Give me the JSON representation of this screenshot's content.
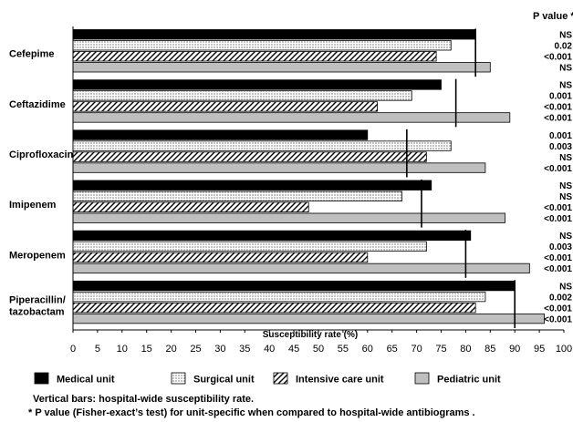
{
  "chart_data": {
    "type": "bar",
    "orientation": "horizontal",
    "xlabel": "Susceptibility rate (%)",
    "xlim": [
      0,
      100
    ],
    "xticks": [
      0,
      5,
      10,
      15,
      20,
      25,
      30,
      35,
      40,
      45,
      50,
      55,
      60,
      65,
      70,
      75,
      80,
      85,
      90,
      95,
      100
    ],
    "pvalue_header": "P value *",
    "categories": [
      {
        "label": [
          "Cefepime"
        ],
        "values": [
          82,
          77,
          74,
          85
        ],
        "hospital": 82,
        "pvalues": [
          "NS",
          "0.02",
          "<0.001",
          "NS"
        ]
      },
      {
        "label": [
          "Ceftazidime"
        ],
        "values": [
          75,
          69,
          62,
          89
        ],
        "hospital": 78,
        "pvalues": [
          "NS",
          "0.001",
          "<0.001",
          "<0.001"
        ]
      },
      {
        "label": [
          "Ciprofloxacin"
        ],
        "values": [
          60,
          77,
          72,
          84
        ],
        "hospital": 68,
        "pvalues": [
          "0.001",
          "0.003",
          "NS",
          "<0.001"
        ]
      },
      {
        "label": [
          "Imipenem"
        ],
        "values": [
          73,
          67,
          48,
          88
        ],
        "hospital": 71,
        "pvalues": [
          "NS",
          "NS",
          "<0.001",
          "<0.001"
        ]
      },
      {
        "label": [
          "Meropenem"
        ],
        "values": [
          81,
          72,
          60,
          93
        ],
        "hospital": 80,
        "pvalues": [
          "NS",
          "0.003",
          "<0.001",
          "<0.001"
        ]
      },
      {
        "label": [
          "Piperacillin/",
          "tazobactam"
        ],
        "values": [
          90,
          84,
          82,
          96
        ],
        "hospital": 90,
        "pvalues": [
          "NS",
          "0.002",
          "<0.001",
          "<0.001"
        ]
      }
    ],
    "series": [
      {
        "name": "Medical unit",
        "pattern": "solid",
        "color": "#000000"
      },
      {
        "name": "Surgical unit",
        "pattern": "dots",
        "color": "#ffffff"
      },
      {
        "name": "Intensive care  unit",
        "pattern": "hatch",
        "color": "#ffffff"
      },
      {
        "name": "Pediatric unit",
        "pattern": "solid",
        "color": "#bfbfbf"
      }
    ],
    "legend_position": "bottom",
    "grid": false
  },
  "notes": {
    "vertical_bars": "Vertical bars: hospital-wide susceptibility rate.",
    "footnote": "* P value (Fisher-exact’s test) for unit-specific when compared to hospital-wide antibiograms ."
  }
}
